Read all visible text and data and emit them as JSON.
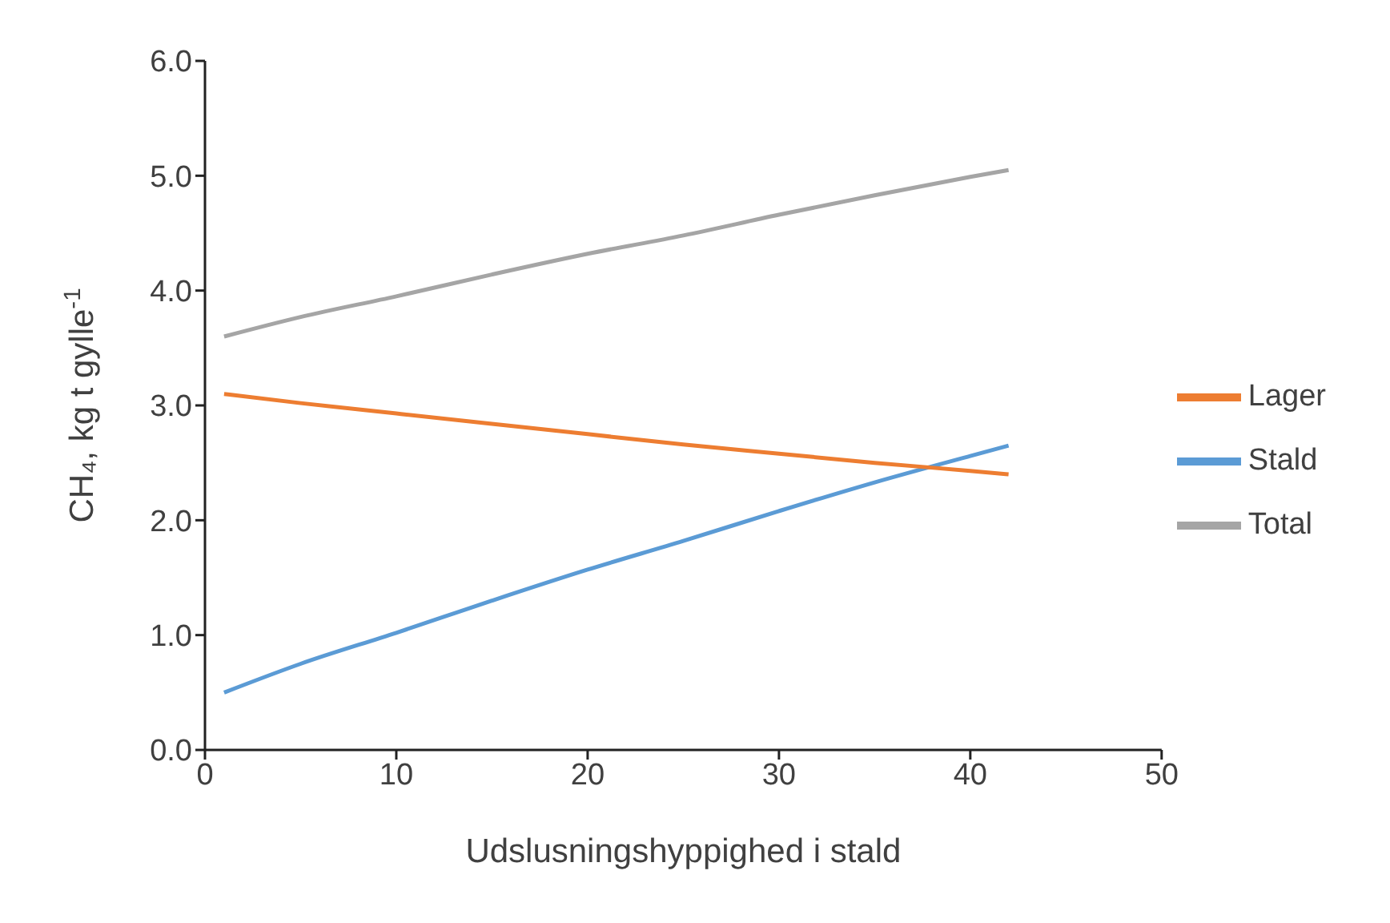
{
  "chart_data": {
    "type": "line",
    "xlabel": "Udslusningshyppighed  i stald",
    "ylabel": "CH₄, kg t gylle$^{-1}$",
    "x": [
      1,
      5,
      10,
      15,
      20,
      25,
      30,
      35,
      40,
      42
    ],
    "series": [
      {
        "name": "Stald",
        "color": "#5b9bd5",
        "values": [
          0.5,
          0.75,
          1.02,
          1.3,
          1.57,
          1.82,
          2.08,
          2.33,
          2.56,
          2.65
        ]
      },
      {
        "name": "Lager",
        "color": "#ed7d31",
        "values": [
          3.1,
          3.02,
          2.93,
          2.84,
          2.75,
          2.66,
          2.58,
          2.5,
          2.43,
          2.4
        ]
      },
      {
        "name": "Total",
        "color": "#a5a5a5",
        "values": [
          3.6,
          3.77,
          3.95,
          4.14,
          4.32,
          4.48,
          4.66,
          4.83,
          4.99,
          5.05
        ]
      }
    ],
    "xlim": [
      0,
      50
    ],
    "xticks": [
      0,
      10,
      20,
      30,
      40,
      50
    ],
    "ylim": [
      0,
      6
    ],
    "yticks": [
      {
        "value": 0,
        "label": "0.0"
      },
      {
        "value": 1,
        "label": "1.0"
      },
      {
        "value": 2,
        "label": "2.0"
      },
      {
        "value": 3,
        "label": "3.0"
      },
      {
        "value": 4,
        "label": "4.0"
      },
      {
        "value": 5,
        "label": "5.0"
      },
      {
        "value": 6,
        "label": "6.0"
      }
    ],
    "grid": false,
    "legend": "right",
    "marker": "none",
    "line_style": "solid"
  }
}
